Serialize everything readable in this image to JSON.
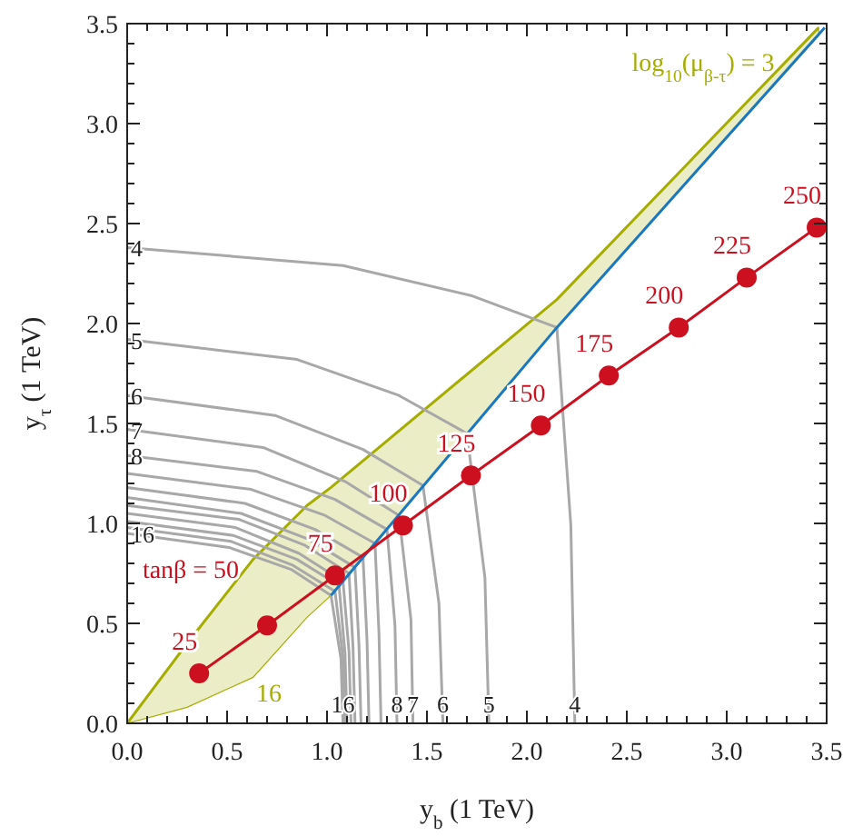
{
  "chart_data": {
    "type": "line",
    "xlabel": "y$_{b}$ (1 TeV)",
    "ylabel": "y$_{τ}$ (1 TeV)",
    "xlim": [
      0,
      3.5
    ],
    "ylim": [
      0,
      3.5
    ],
    "xticks": [
      {
        "value": 0,
        "label": "0.0"
      },
      {
        "value": 0.5,
        "label": "0.5"
      },
      {
        "value": 1,
        "label": "1.0"
      },
      {
        "value": 1.5,
        "label": "1.5"
      },
      {
        "value": 2,
        "label": "2.0"
      },
      {
        "value": 2.5,
        "label": "2.5"
      },
      {
        "value": 3,
        "label": "3.0"
      },
      {
        "value": 3.5,
        "label": "3.5"
      }
    ],
    "yticks": [
      {
        "value": 0,
        "label": "0.0"
      },
      {
        "value": 0.5,
        "label": "0.5"
      },
      {
        "value": 1,
        "label": "1.0"
      },
      {
        "value": 1.5,
        "label": "1.5"
      },
      {
        "value": 2,
        "label": "2.0"
      },
      {
        "value": 2.5,
        "label": "2.5"
      },
      {
        "value": 3,
        "label": "3.0"
      },
      {
        "value": 3.5,
        "label": "3.5"
      }
    ],
    "grid": false,
    "marker": "none",
    "line_style": "solid",
    "annotations": [
      "log$_{10}$(μ$_{β-τ}$) = 3",
      "16",
      {
        "text": "tanβ = 50",
        "x": 0.7,
        "y": 0.49
      },
      {
        "text": "25",
        "x": 0.36,
        "y": 0.25
      },
      {
        "text": "75",
        "x": 1.04,
        "y": 0.74
      },
      {
        "text": "100",
        "x": 1.38,
        "y": 0.99
      },
      {
        "text": "125",
        "x": 1.72,
        "y": 1.24
      },
      {
        "text": "150",
        "x": 2.07,
        "y": 1.49
      },
      {
        "text": "175",
        "x": 2.41,
        "y": 1.74
      },
      {
        "text": "200",
        "x": 2.76,
        "y": 1.98
      },
      {
        "text": "225",
        "x": 3.1,
        "y": 2.23
      },
      {
        "text": "250",
        "x": 3.45,
        "y": 2.48
      }
    ],
    "series": [
      {
        "color": "#a6ad00",
        "x": [
          0,
          0.3,
          0.63,
          0.9,
          1.02,
          2.15,
          3.46
        ],
        "values": [
          0,
          0.4,
          0.82,
          1.09,
          1.18,
          2.12,
          3.48
        ],
        "lower": [
          0,
          0.08,
          0.23,
          0.53,
          0.64,
          1.98,
          3.44
        ],
        "upper": [
          0,
          0.4,
          0.82,
          1.09,
          1.18,
          2.12,
          3.48
        ]
      },
      {
        "name": "4",
        "color": "#a8a8a8",
        "x": [
          0,
          1.08,
          1.72,
          2.15,
          2.22,
          2.24
        ],
        "values": [
          2.38,
          2.29,
          2.14,
          1.98,
          0.99,
          0
        ]
      },
      {
        "name": "5",
        "color": "#a8a8a8",
        "x": [
          0,
          0.85,
          1.36,
          1.7,
          1.79,
          1.81
        ],
        "values": [
          1.92,
          1.82,
          1.64,
          1.45,
          0.73,
          0
        ]
      },
      {
        "name": "6",
        "color": "#a8a8a8",
        "x": [
          0,
          0.74,
          1.18,
          1.48,
          1.56,
          1.58
        ],
        "values": [
          1.64,
          1.54,
          1.37,
          1.19,
          0.6,
          0
        ]
      },
      {
        "name": "7",
        "color": "#a8a8a8",
        "x": [
          0,
          0.68,
          1.09,
          1.36,
          1.42,
          1.43
        ],
        "values": [
          1.47,
          1.38,
          1.21,
          1.04,
          0.52,
          0
        ]
      },
      {
        "name": "8",
        "color": "#a8a8a8",
        "x": [
          0,
          0.65,
          1.04,
          1.3,
          1.34,
          1.35
        ],
        "values": [
          1.34,
          1.26,
          1.12,
          0.97,
          0.49,
          0
        ]
      },
      {
        "color": "#a8a8a8",
        "x": [
          0,
          0.62,
          0.99,
          1.24,
          1.26,
          1.27
        ],
        "values": [
          1.25,
          1.17,
          1.04,
          0.9,
          0.45,
          0
        ]
      },
      {
        "color": "#a8a8a8",
        "x": [
          0,
          0.59,
          0.94,
          1.18,
          1.2,
          1.21
        ],
        "values": [
          1.18,
          1.1,
          0.97,
          0.83,
          0.42,
          0
        ]
      },
      {
        "color": "#a8a8a8",
        "x": [
          0,
          0.57,
          0.91,
          1.14,
          1.16,
          1.17
        ],
        "values": [
          1.13,
          1.05,
          0.92,
          0.78,
          0.39,
          0
        ]
      },
      {
        "color": "#a8a8a8",
        "x": [
          0,
          0.56,
          0.89,
          1.11,
          1.13,
          1.14
        ],
        "values": [
          1.09,
          1.02,
          0.89,
          0.75,
          0.38,
          0
        ]
      },
      {
        "color": "#a8a8a8",
        "x": [
          0,
          0.54,
          0.86,
          1.08,
          1.11,
          1.12
        ],
        "values": [
          1.05,
          0.98,
          0.85,
          0.71,
          0.36,
          0
        ]
      },
      {
        "color": "#a8a8a8",
        "x": [
          0,
          0.53,
          0.85,
          1.06,
          1.09,
          1.1
        ],
        "values": [
          1.01,
          0.94,
          0.82,
          0.69,
          0.35,
          0
        ]
      },
      {
        "color": "#a8a8a8",
        "x": [
          0,
          0.52,
          0.83,
          1.04,
          1.08,
          1.09
        ],
        "values": [
          0.98,
          0.91,
          0.79,
          0.66,
          0.33,
          0
        ]
      },
      {
        "name": "16",
        "color": "#a8a8a8",
        "x": [
          0,
          0.51,
          0.82,
          1.02,
          1.07,
          1.08
        ],
        "values": [
          0.95,
          0.88,
          0.77,
          0.64,
          0.32,
          0
        ]
      },
      {
        "color": "#1a78c2",
        "x": [
          1.02,
          2.15,
          3.49
        ],
        "values": [
          0.64,
          1.98,
          3.48
        ]
      },
      {
        "color": "#cc1020",
        "type": "line",
        "marker": "circle",
        "x": [
          0.36,
          0.7,
          1.04,
          1.38,
          1.72,
          2.07,
          2.41,
          2.76,
          3.1,
          3.45
        ],
        "values": [
          0.25,
          0.49,
          0.74,
          0.99,
          1.24,
          1.49,
          1.74,
          1.98,
          2.23,
          2.48
        ]
      }
    ]
  }
}
